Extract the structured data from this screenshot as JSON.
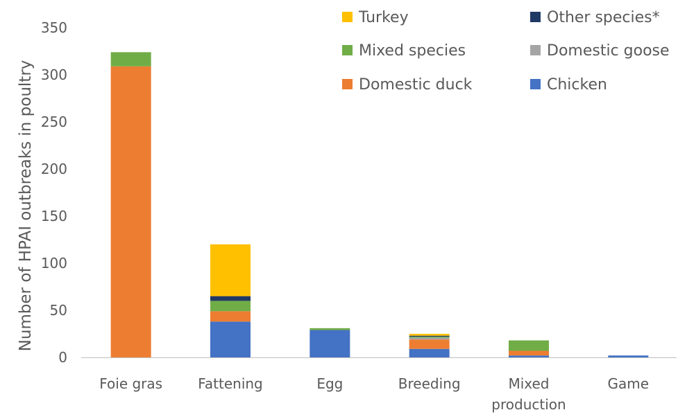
{
  "chart_data": {
    "type": "bar",
    "stacked": true,
    "title": "",
    "xlabel": "",
    "ylabel": "Number of HPAI outbreaks in poultry",
    "ylim": [
      0,
      350
    ],
    "yticks": [
      0,
      50,
      100,
      150,
      200,
      250,
      300,
      350
    ],
    "grid": false,
    "legend_position": "top-right",
    "categories": [
      "Foie gras",
      "Fattening",
      "Egg",
      "Breeding",
      "Mixed production",
      "Game"
    ],
    "category_lines": [
      [
        "Foie gras"
      ],
      [
        "Fattening"
      ],
      [
        "Egg"
      ],
      [
        "Breeding"
      ],
      [
        "Mixed",
        "production"
      ],
      [
        "Game"
      ]
    ],
    "series": [
      {
        "name": "Chicken",
        "color": "#4472C4",
        "values": [
          0,
          38,
          29,
          9,
          2,
          2
        ]
      },
      {
        "name": "Domestic duck",
        "color": "#ED7D31",
        "values": [
          309,
          11,
          0,
          10,
          5,
          0
        ]
      },
      {
        "name": "Domestic goose",
        "color": "#A5A5A5",
        "values": [
          0,
          0,
          0,
          2,
          0,
          0
        ]
      },
      {
        "name": "Mixed species",
        "color": "#70AD47",
        "values": [
          15,
          11,
          2,
          1,
          11,
          0
        ]
      },
      {
        "name": "Other species*",
        "color": "#203864",
        "values": [
          0,
          5,
          0,
          1,
          0,
          0
        ]
      },
      {
        "name": "Turkey",
        "color": "#FFC000",
        "values": [
          0,
          55,
          0,
          2,
          0,
          0
        ]
      }
    ],
    "legend_order": [
      "Turkey",
      "Other species*",
      "Mixed species",
      "Domestic goose",
      "Domestic duck",
      "Chicken"
    ]
  }
}
